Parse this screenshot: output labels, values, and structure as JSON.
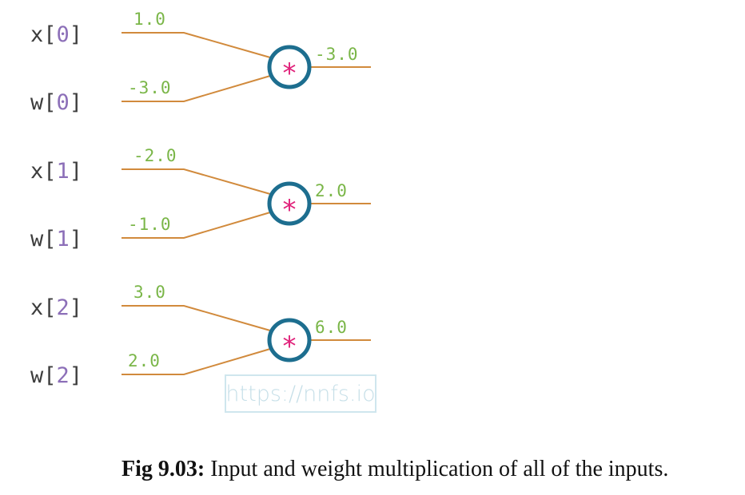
{
  "diagram": {
    "operator_symbol": "*",
    "colors": {
      "label": "#3d3d3d",
      "index": "#8c6fb8",
      "value": "#7ab648",
      "wire": "#d18a3c",
      "node": "#1d6e8f",
      "operator": "#e0217a"
    },
    "groups": [
      {
        "x_label": "x",
        "x_index": "0",
        "w_label": "w",
        "w_index": "0",
        "x_value": "1.0",
        "w_value": "-3.0",
        "output": "-3.0"
      },
      {
        "x_label": "x",
        "x_index": "1",
        "w_label": "w",
        "w_index": "1",
        "x_value": "-2.0",
        "w_value": "-1.0",
        "output": "2.0"
      },
      {
        "x_label": "x",
        "x_index": "2",
        "w_label": "w",
        "w_index": "2",
        "x_value": "3.0",
        "w_value": "2.0",
        "output": "6.0"
      }
    ]
  },
  "watermark": "https://nnfs.io",
  "caption": {
    "label": "Fig 9.03:",
    "text": " Input and weight multiplication of all of the inputs."
  }
}
